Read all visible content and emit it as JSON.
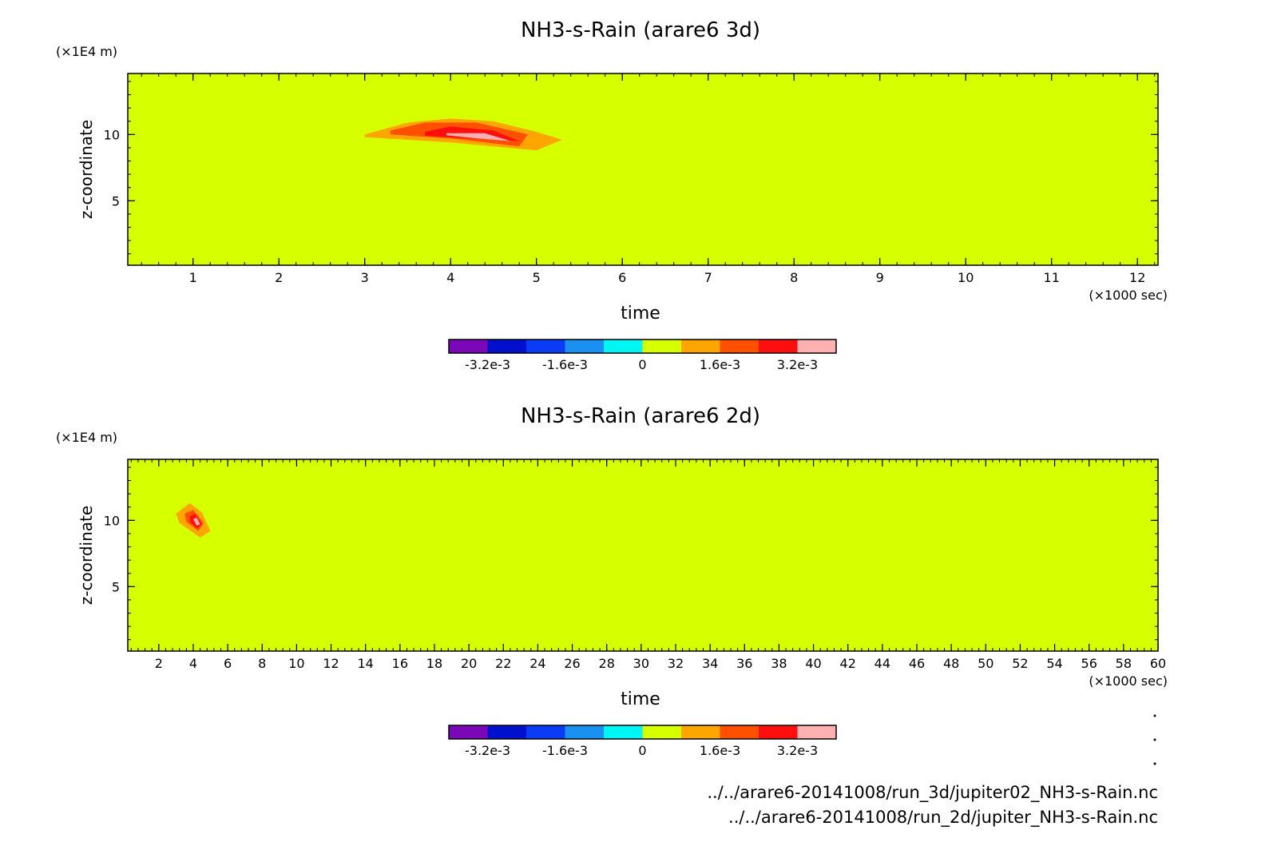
{
  "footer": {
    "file_3d": "../../arare6-20141008/run_3d/jupiter02_NH3-s-Rain.nc",
    "file_2d": "../../arare6-20141008/run_2d/jupiter_NH3-s-Rain.nc"
  },
  "chart_data": [
    {
      "type": "heatmap",
      "title": "NH3-s-Rain (arare6 3d)",
      "xlabel": "time",
      "xunit": "(×1000 sec)",
      "ylabel": "z-coordinate",
      "yunit": "(×1E4 m)",
      "xlim": [
        0.24,
        12.24
      ],
      "ylim": [
        0.14,
        14.6
      ],
      "xticks": [
        1,
        2,
        3,
        4,
        5,
        6,
        7,
        8,
        9,
        10,
        11,
        12
      ],
      "yticks": [
        5,
        10
      ],
      "background_value": "0 to 8e-4",
      "features": [
        {
          "level": "8e-4 to 1.6e-3",
          "polygon": [
            [
              3.0,
              10.0
            ],
            [
              3.5,
              10.9
            ],
            [
              4.0,
              11.2
            ],
            [
              4.5,
              11.0
            ],
            [
              5.0,
              10.2
            ],
            [
              5.3,
              9.6
            ],
            [
              5.0,
              8.8
            ],
            [
              4.0,
              9.4
            ],
            [
              3.0,
              9.8
            ]
          ]
        },
        {
          "level": "1.6e-3 to 2.4e-3",
          "polygon": [
            [
              3.3,
              10.3
            ],
            [
              3.7,
              10.9
            ],
            [
              4.3,
              10.9
            ],
            [
              4.9,
              10.0
            ],
            [
              4.8,
              9.1
            ],
            [
              4.0,
              9.7
            ],
            [
              3.3,
              10.0
            ]
          ]
        },
        {
          "level": "2.4e-3 to 3.2e-3",
          "polygon": [
            [
              3.7,
              10.2
            ],
            [
              4.0,
              10.6
            ],
            [
              4.5,
              10.3
            ],
            [
              4.8,
              9.5
            ],
            [
              4.2,
              9.7
            ],
            [
              3.7,
              9.9
            ]
          ]
        },
        {
          "level": "3.2e-3 to 4e-3",
          "polygon": [
            [
              3.95,
              10.1
            ],
            [
              4.4,
              10.1
            ],
            [
              4.7,
              9.5
            ],
            [
              4.3,
              9.7
            ],
            [
              3.95,
              9.95
            ]
          ]
        }
      ],
      "colorbar": {
        "colors": [
          "#7b08b8",
          "#0010cc",
          "#0a3cf5",
          "#1a90f0",
          "#00f5f5",
          "#d6ff00",
          "#ffa500",
          "#ff5000",
          "#ff0e0e",
          "#ffb0b0"
        ],
        "labels": [
          "-3.2e-3",
          "-1.6e-3",
          "0",
          "1.6e-3",
          "3.2e-3"
        ]
      }
    },
    {
      "type": "heatmap",
      "title": "NH3-s-Rain (arare6 2d)",
      "xlabel": "time",
      "xunit": "(×1000 sec)",
      "ylabel": "z-coordinate",
      "yunit": "(×1E4 m)",
      "xlim": [
        0.2,
        60
      ],
      "ylim": [
        0.14,
        14.6
      ],
      "xticks": [
        2,
        4,
        6,
        8,
        10,
        12,
        14,
        16,
        18,
        20,
        22,
        24,
        26,
        28,
        30,
        32,
        34,
        36,
        38,
        40,
        42,
        44,
        46,
        48,
        50,
        52,
        54,
        56,
        58,
        60
      ],
      "yticks": [
        5,
        10
      ],
      "background_value": "0 to 8e-4",
      "features": [
        {
          "level": "8e-4 to 1.6e-3",
          "polygon": [
            [
              3.0,
              10.5
            ],
            [
              3.8,
              11.3
            ],
            [
              4.5,
              10.6
            ],
            [
              5.0,
              9.2
            ],
            [
              4.4,
              8.7
            ],
            [
              3.2,
              9.8
            ]
          ]
        },
        {
          "level": "1.6e-3 to 2.4e-3",
          "polygon": [
            [
              3.5,
              10.5
            ],
            [
              4.0,
              10.8
            ],
            [
              4.6,
              9.8
            ],
            [
              4.3,
              9.2
            ],
            [
              3.6,
              9.9
            ]
          ]
        },
        {
          "level": "2.4e-3 to 3.2e-3",
          "polygon": [
            [
              3.8,
              10.3
            ],
            [
              4.1,
              10.5
            ],
            [
              4.5,
              9.7
            ],
            [
              4.2,
              9.4
            ],
            [
              3.8,
              9.9
            ]
          ]
        },
        {
          "level": "3.2e-3 to 4e-3",
          "polygon": [
            [
              4.0,
              10.1
            ],
            [
              4.2,
              10.2
            ],
            [
              4.4,
              9.7
            ],
            [
              4.2,
              9.6
            ]
          ]
        }
      ],
      "colorbar": {
        "colors": [
          "#7b08b8",
          "#0010cc",
          "#0a3cf5",
          "#1a90f0",
          "#00f5f5",
          "#d6ff00",
          "#ffa500",
          "#ff5000",
          "#ff0e0e",
          "#ffb0b0"
        ],
        "labels": [
          "-3.2e-3",
          "-1.6e-3",
          "0",
          "1.6e-3",
          "3.2e-3"
        ]
      }
    }
  ]
}
